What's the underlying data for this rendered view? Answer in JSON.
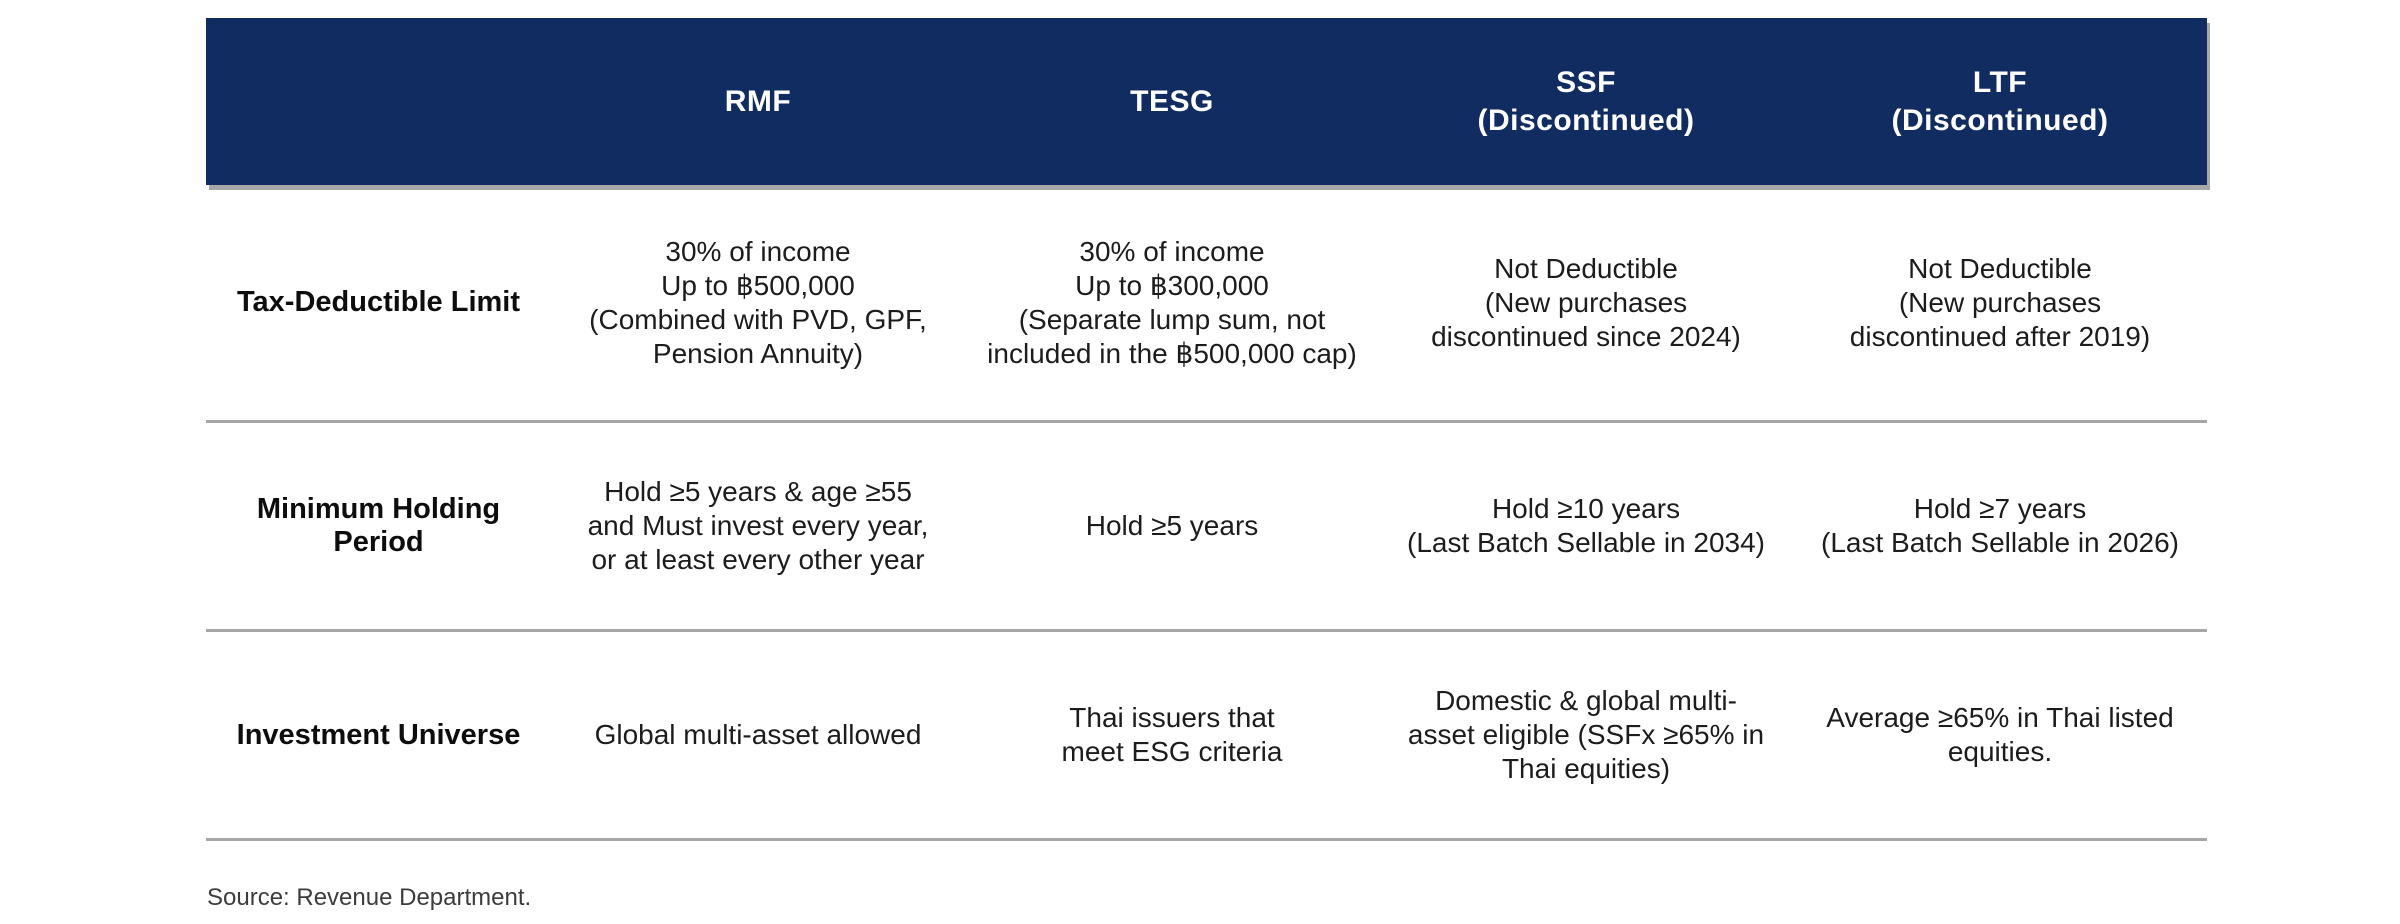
{
  "colors": {
    "header_bg": "#102c60",
    "header_text": "#ffffff",
    "divider": "#a6a6a6",
    "body_text": "#1c1c1c",
    "label_text": "#0d0d0d",
    "source_text": "#3c3c3c",
    "page_bg": "#ffffff"
  },
  "table": {
    "columns": [
      "RMF",
      "TESG",
      "SSF\n(Discontinued)",
      "LTF\n(Discontinued)"
    ],
    "rows": [
      {
        "label": "Tax-Deductible Limit",
        "cells": [
          "30% of income\nUp to ฿500,000\n(Combined with PVD, GPF,\nPension Annuity)",
          "30% of income\nUp to ฿300,000\n(Separate lump sum, not\nincluded in the ฿500,000 cap)",
          "Not Deductible\n(New purchases\ndiscontinued since 2024)",
          "Not Deductible\n(New purchases\ndiscontinued after 2019)"
        ]
      },
      {
        "label": "Minimum Holding Period",
        "cells": [
          "Hold ≥5 years & age ≥55\nand Must invest every year,\nor at least every other year",
          "Hold ≥5 years",
          "Hold ≥10 years\n(Last Batch Sellable in 2034)",
          "Hold ≥7 years\n(Last Batch Sellable in 2026)"
        ]
      },
      {
        "label": "Investment Universe",
        "cells": [
          "Global multi-asset allowed",
          "Thai issuers that\nmeet ESG criteria",
          "Domestic & global multi-\nasset eligible (SSFx ≥65% in\nThai equities)",
          "Average ≥65% in Thai listed\nequities."
        ]
      }
    ]
  },
  "footer": {
    "source": "Source: Revenue Department."
  }
}
